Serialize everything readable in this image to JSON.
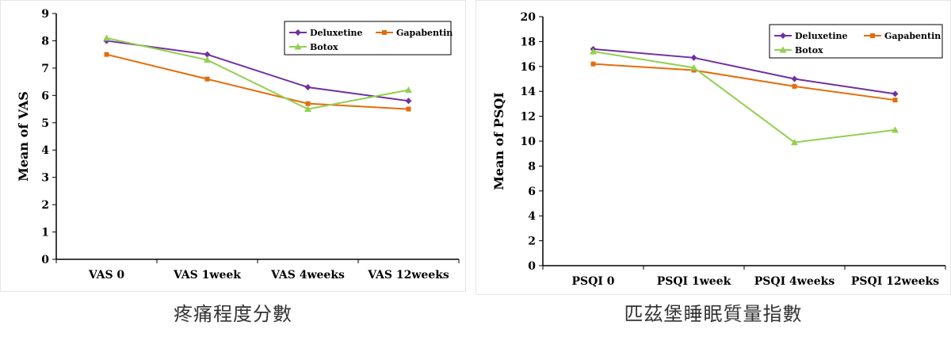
{
  "chart_data": [
    {
      "type": "line",
      "ylabel": "Mean of VAS",
      "xlabel": "",
      "categories": [
        "VAS 0",
        "VAS 1week",
        "VAS 4weeks",
        "VAS 12weeks"
      ],
      "ylim": [
        0,
        9
      ],
      "yticks": [
        0,
        1,
        2,
        3,
        4,
        5,
        6,
        7,
        8,
        9
      ],
      "legend_position": "top-right",
      "series": [
        {
          "name": "Deluxetine",
          "color": "#7030a0",
          "marker": "diamond",
          "values": [
            8.0,
            7.5,
            6.3,
            5.8
          ]
        },
        {
          "name": "Gapabentin",
          "color": "#e46c0a",
          "marker": "square",
          "values": [
            7.5,
            6.6,
            5.7,
            5.5
          ]
        },
        {
          "name": "Botox",
          "color": "#92d050",
          "marker": "triangle",
          "values": [
            8.1,
            7.3,
            5.5,
            6.2
          ]
        }
      ]
    },
    {
      "type": "line",
      "ylabel": "Mean of PSQI",
      "xlabel": "",
      "categories": [
        "PSQI 0",
        "PSQI 1week",
        "PSQI 4weeks",
        "PSQI 12weeks"
      ],
      "ylim": [
        0,
        20
      ],
      "yticks": [
        0,
        2,
        4,
        6,
        8,
        10,
        12,
        14,
        16,
        18,
        20
      ],
      "legend_position": "top-right",
      "series": [
        {
          "name": "Deluxetine",
          "color": "#7030a0",
          "marker": "diamond",
          "values": [
            17.4,
            16.7,
            15.0,
            13.8
          ]
        },
        {
          "name": "Gapabentin",
          "color": "#e46c0a",
          "marker": "square",
          "values": [
            16.2,
            15.7,
            14.4,
            13.3
          ]
        },
        {
          "name": "Botox",
          "color": "#92d050",
          "marker": "triangle",
          "values": [
            17.2,
            15.9,
            9.9,
            10.9
          ]
        }
      ]
    }
  ],
  "captions": {
    "left": "疼痛程度分數",
    "right": "匹茲堡睡眠質量指數"
  }
}
